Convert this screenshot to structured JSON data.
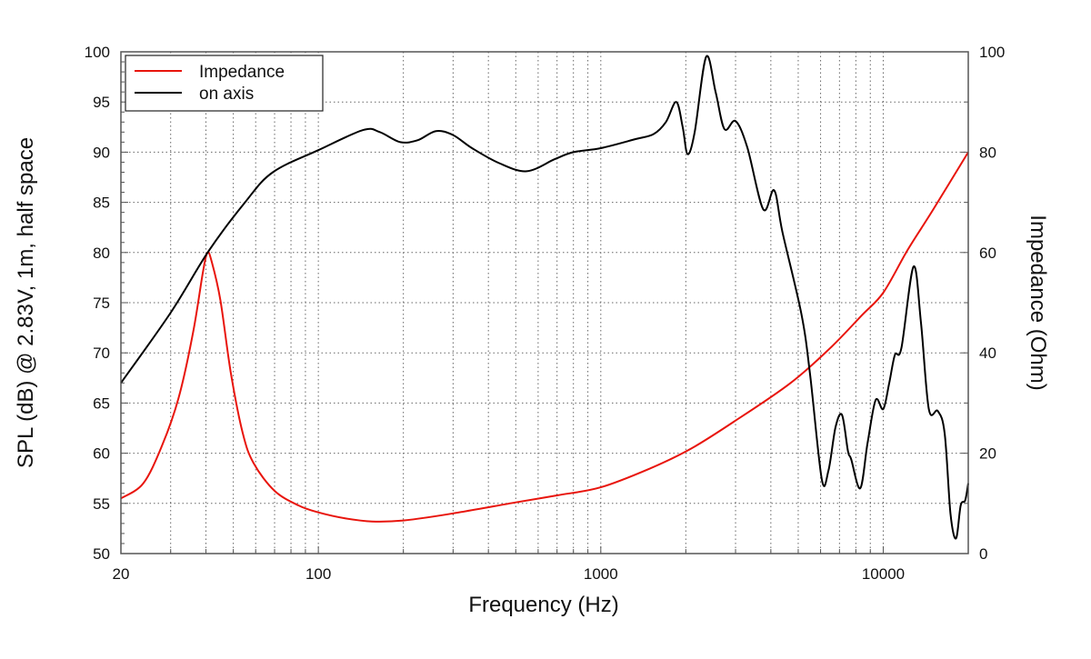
{
  "chart_data": {
    "type": "line",
    "xlabel": "Frequency (Hz)",
    "ylabel": "SPL (dB) @ 2.83V, 1m, half space",
    "y2label": "Impedance (Ohm)",
    "xscale": "log",
    "xlim": [
      20,
      20000
    ],
    "ylim": [
      50,
      100
    ],
    "y2lim": [
      0,
      100
    ],
    "xticks": [
      {
        "v": 20,
        "label": "20"
      },
      {
        "v": 100,
        "label": "100"
      },
      {
        "v": 1000,
        "label": "1000"
      },
      {
        "v": 10000,
        "label": "10000"
      }
    ],
    "yticks": [
      "50",
      "55",
      "60",
      "65",
      "70",
      "75",
      "80",
      "85",
      "90",
      "95",
      "100"
    ],
    "y2ticks": [
      "0",
      "20",
      "40",
      "60",
      "80",
      "100"
    ],
    "grid": true,
    "legend_position": "top-left",
    "series": [
      {
        "name": "Impedance",
        "axis": "right",
        "color": "#e8140c",
        "points": [
          [
            20,
            11
          ],
          [
            24,
            14
          ],
          [
            28,
            21.6
          ],
          [
            32,
            31
          ],
          [
            36,
            44
          ],
          [
            39,
            56
          ],
          [
            40.5,
            60
          ],
          [
            42,
            58
          ],
          [
            45,
            50.5
          ],
          [
            49,
            36
          ],
          [
            54,
            24
          ],
          [
            59,
            18
          ],
          [
            70,
            12.5
          ],
          [
            85,
            9.6
          ],
          [
            100,
            8.2
          ],
          [
            125,
            7
          ],
          [
            155,
            6.4
          ],
          [
            200,
            6.6
          ],
          [
            300,
            8
          ],
          [
            500,
            10.2
          ],
          [
            700,
            11.6
          ],
          [
            1000,
            13.2
          ],
          [
            1500,
            17
          ],
          [
            2100,
            21
          ],
          [
            3000,
            26.5
          ],
          [
            4700,
            34
          ],
          [
            6500,
            41
          ],
          [
            8400,
            47.5
          ],
          [
            10000,
            52
          ],
          [
            12200,
            60.5
          ],
          [
            15000,
            68.5
          ],
          [
            20000,
            80
          ]
        ]
      },
      {
        "name": "on axis",
        "axis": "left",
        "color": "#000000",
        "points": [
          [
            20,
            67
          ],
          [
            30,
            74
          ],
          [
            41,
            80.2
          ],
          [
            55,
            85
          ],
          [
            69,
            88
          ],
          [
            100,
            90.2
          ],
          [
            144,
            92.2
          ],
          [
            165,
            92
          ],
          [
            195,
            91
          ],
          [
            225,
            91.2
          ],
          [
            261,
            92.1
          ],
          [
            300,
            91.7
          ],
          [
            350,
            90.4
          ],
          [
            437,
            88.9
          ],
          [
            547,
            88.1
          ],
          [
            687,
            89.3
          ],
          [
            800,
            90
          ],
          [
            1000,
            90.4
          ],
          [
            1328,
            91.3
          ],
          [
            1538,
            91.8
          ],
          [
            1700,
            93
          ],
          [
            1850,
            95
          ],
          [
            1950,
            92.5
          ],
          [
            2030,
            89.8
          ],
          [
            2150,
            92
          ],
          [
            2360,
            99.5
          ],
          [
            2550,
            96
          ],
          [
            2740,
            92.3
          ],
          [
            3000,
            93.1
          ],
          [
            3300,
            90.5
          ],
          [
            3760,
            84.3
          ],
          [
            4110,
            86.2
          ],
          [
            4400,
            82
          ],
          [
            5130,
            73.9
          ],
          [
            5500,
            68
          ],
          [
            6060,
            57.4
          ],
          [
            6400,
            58.3
          ],
          [
            6780,
            62.6
          ],
          [
            7150,
            63.8
          ],
          [
            7500,
            60.2
          ],
          [
            7700,
            59.4
          ],
          [
            8290,
            56.5
          ],
          [
            8800,
            61
          ],
          [
            9400,
            65.3
          ],
          [
            10000,
            64.4
          ],
          [
            10500,
            67
          ],
          [
            11000,
            69.8
          ],
          [
            11600,
            70.5
          ],
          [
            12800,
            78.6
          ],
          [
            13600,
            73
          ],
          [
            14500,
            64.4
          ],
          [
            15600,
            64.2
          ],
          [
            16500,
            62
          ],
          [
            17300,
            54
          ],
          [
            18100,
            51.5
          ],
          [
            18800,
            54.8
          ],
          [
            19500,
            55.3
          ],
          [
            20000,
            57
          ]
        ]
      }
    ]
  }
}
